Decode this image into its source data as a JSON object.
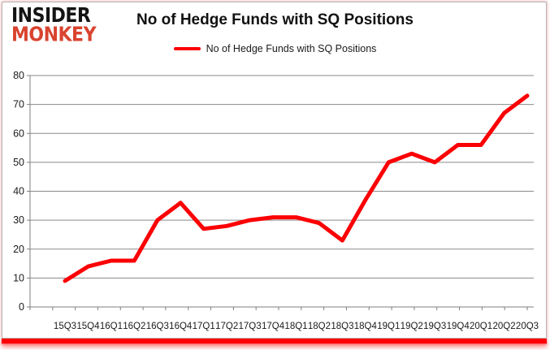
{
  "logo": {
    "line1": "INSIDER",
    "line2": "MONKEY"
  },
  "header": {
    "title": "No of Hedge Funds with SQ Positions"
  },
  "legend": {
    "label": "No of Hedge Funds with SQ Positions",
    "marker_color": "#fb0004"
  },
  "colors": {
    "line": "#fb0004",
    "logo_red": "#d9432f",
    "gridline": "#8a8a8a",
    "axis": "#7f7f7f",
    "tick_label": "#1a1a1a",
    "accent_bar": "#fb0004"
  },
  "chart_data": {
    "type": "line",
    "title": "No of Hedge Funds with SQ Positions",
    "categories": [
      "15Q3",
      "15Q4",
      "16Q1",
      "16Q2",
      "16Q3",
      "16Q4",
      "17Q1",
      "17Q2",
      "17Q3",
      "17Q4",
      "18Q1",
      "18Q2",
      "18Q3",
      "18Q4",
      "19Q1",
      "19Q2",
      "19Q3",
      "19Q4",
      "20Q1",
      "20Q2",
      "20Q3"
    ],
    "values": [
      9,
      14,
      16,
      16,
      30,
      36,
      27,
      28,
      30,
      31,
      31,
      29,
      23,
      37,
      50,
      53,
      50,
      56,
      56,
      67,
      73
    ],
    "series_name": "No of Hedge Funds with SQ Positions",
    "xlabel": "",
    "ylabel": "",
    "ylim": [
      0,
      80
    ],
    "yticks": [
      0,
      10,
      20,
      30,
      40,
      50,
      60,
      70,
      80
    ],
    "grid": true,
    "legend_position": "top",
    "line_color": "#fb0004"
  }
}
